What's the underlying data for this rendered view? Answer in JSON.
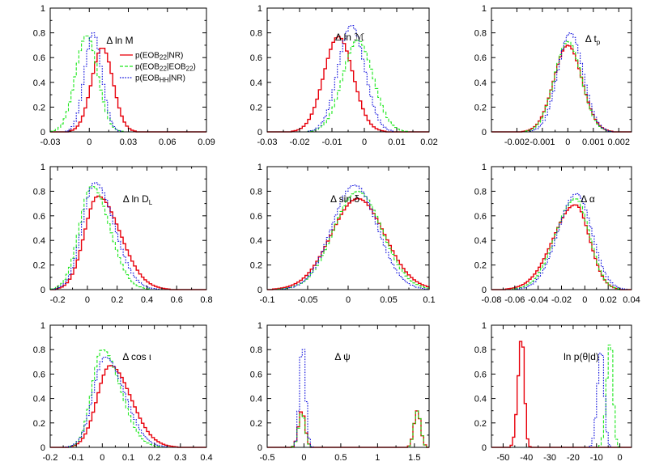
{
  "colors": {
    "red": "#e8000b",
    "green": "#1ee81e",
    "blue": "#0a0adc"
  },
  "legend": [
    {
      "series": "red",
      "base": "p(EOB",
      "sub": "22",
      "rest": "|NR)",
      "sub2": "",
      "tail": "",
      "style": "solid"
    },
    {
      "series": "green",
      "base": "p(EOB",
      "sub": "22",
      "rest": "|EOB",
      "sub2": "22",
      "tail": ")",
      "style": "dashed"
    },
    {
      "series": "blue",
      "base": "p(EOB",
      "sub": "HH",
      "rest": "|NR)",
      "sub2": "",
      "tail": "",
      "style": "dotted"
    }
  ],
  "chart_data": [
    {
      "type": "area",
      "label": "Δ ln M",
      "xlim": [
        -0.03,
        0.09
      ],
      "ylim": [
        0,
        1
      ],
      "xticks": [
        "-0.03",
        "0",
        "0.03",
        "0.06",
        "0.09"
      ],
      "yticks": [
        "0",
        "0.2",
        "0.4",
        "0.6",
        "0.8",
        "1"
      ],
      "series": [
        {
          "key": "red",
          "shape": "gauss",
          "mu": 0.01,
          "sigma": 0.0082,
          "peak": 0.68
        },
        {
          "key": "green",
          "shape": "gauss",
          "mu": -0.002,
          "sigma": 0.0085,
          "peak": 0.78
        },
        {
          "key": "blue",
          "shape": "gauss",
          "mu": 0.003,
          "sigma": 0.0066,
          "peak": 0.8
        }
      ]
    },
    {
      "type": "area",
      "label": "Δ ln ℳ",
      "xlim": [
        -0.03,
        0.02
      ],
      "ylim": [
        0,
        1
      ],
      "xticks": [
        "-0.03",
        "-0.02",
        "-0.01",
        "0",
        "0.01",
        "0.02"
      ],
      "yticks": [
        "0",
        "0.2",
        "0.4",
        "0.6",
        "0.8",
        "1"
      ],
      "series": [
        {
          "key": "red",
          "shape": "gauss",
          "mu": -0.008,
          "sigma": 0.0045,
          "peak": 0.77
        },
        {
          "key": "green",
          "shape": "gauss",
          "mu": -0.002,
          "sigma": 0.0047,
          "peak": 0.74
        },
        {
          "key": "blue",
          "shape": "gauss",
          "mu": -0.004,
          "sigma": 0.0041,
          "peak": 0.86
        }
      ]
    },
    {
      "type": "area",
      "label": "Δ t",
      "label_sub": "p",
      "xlim": [
        -0.003,
        0.0025
      ],
      "ylim": [
        0,
        1
      ],
      "xticks": [
        "-0.002",
        "-0.001",
        "0",
        "0.001",
        "0.002"
      ],
      "yticks": [
        "0",
        "0.2",
        "0.4",
        "0.6",
        "0.8",
        "1"
      ],
      "series": [
        {
          "key": "red",
          "shape": "gauss",
          "mu": 0.0,
          "sigma": 0.00055,
          "peak": 0.7
        },
        {
          "key": "green",
          "shape": "gauss",
          "mu": 0.0,
          "sigma": 0.00053,
          "peak": 0.73
        },
        {
          "key": "blue",
          "shape": "gauss",
          "mu": 0.0001,
          "sigma": 0.0005,
          "peak": 0.8
        }
      ]
    },
    {
      "type": "area",
      "label": "Δ ln D",
      "label_sub": "L",
      "xlim": [
        -0.25,
        0.8
      ],
      "ylim": [
        0,
        1
      ],
      "xticks": [
        "-0.2",
        "0",
        "0.2",
        "0.4",
        "0.6",
        "0.8"
      ],
      "yticks": [
        "0",
        "0.2",
        "0.4",
        "0.6",
        "0.8",
        "1"
      ],
      "series": [
        {
          "key": "red",
          "shape": "skew",
          "mu": 0.07,
          "sigma": 0.09,
          "sigma_r": 0.15,
          "peak": 0.76
        },
        {
          "key": "green",
          "shape": "skew",
          "mu": 0.03,
          "sigma": 0.085,
          "sigma_r": 0.12,
          "peak": 0.84
        },
        {
          "key": "blue",
          "shape": "skew",
          "mu": 0.05,
          "sigma": 0.085,
          "sigma_r": 0.13,
          "peak": 0.87
        }
      ]
    },
    {
      "type": "area",
      "label": "Δ sin δ",
      "xlim": [
        -0.1,
        0.1
      ],
      "ylim": [
        0,
        1
      ],
      "xticks": [
        "-0.1",
        "-0.05",
        "0",
        "0.05",
        "0.1"
      ],
      "yticks": [
        "0",
        "0.2",
        "0.4",
        "0.6",
        "0.8",
        "1"
      ],
      "series": [
        {
          "key": "red",
          "shape": "gauss",
          "mu": 0.012,
          "sigma": 0.033,
          "peak": 0.74
        },
        {
          "key": "green",
          "shape": "gauss",
          "mu": 0.012,
          "sigma": 0.03,
          "peak": 0.8
        },
        {
          "key": "blue",
          "shape": "gauss",
          "mu": 0.008,
          "sigma": 0.028,
          "peak": 0.85
        }
      ]
    },
    {
      "type": "area",
      "label": "Δ α",
      "xlim": [
        -0.08,
        0.04
      ],
      "ylim": [
        0,
        1
      ],
      "xticks": [
        "-0.08",
        "-0.06",
        "-0.04",
        "-0.02",
        "0",
        "0.02",
        "0.04"
      ],
      "yticks": [
        "0",
        "0.2",
        "0.4",
        "0.6",
        "0.8",
        "1"
      ],
      "series": [
        {
          "key": "red",
          "shape": "skew",
          "mu": -0.008,
          "sigma": 0.019,
          "sigma_r": 0.012,
          "peak": 0.69
        },
        {
          "key": "green",
          "shape": "skew",
          "mu": -0.008,
          "sigma": 0.017,
          "sigma_r": 0.012,
          "peak": 0.74
        },
        {
          "key": "blue",
          "shape": "skew",
          "mu": -0.007,
          "sigma": 0.016,
          "sigma_r": 0.013,
          "peak": 0.78
        }
      ]
    },
    {
      "type": "area",
      "label": "Δ cos ι",
      "xlim": [
        -0.2,
        0.4
      ],
      "ylim": [
        0,
        1
      ],
      "xticks": [
        "-0.2",
        "-0.1",
        "0",
        "0.1",
        "0.2",
        "0.3",
        "0.4"
      ],
      "yticks": [
        "0",
        "0.2",
        "0.4",
        "0.6",
        "0.8",
        "1"
      ],
      "series": [
        {
          "key": "red",
          "shape": "skew",
          "mu": 0.03,
          "sigma": 0.05,
          "sigma_r": 0.08,
          "peak": 0.67
        },
        {
          "key": "green",
          "shape": "skew",
          "mu": 0.0,
          "sigma": 0.04,
          "sigma_r": 0.07,
          "peak": 0.8
        },
        {
          "key": "blue",
          "shape": "skew",
          "mu": 0.01,
          "sigma": 0.045,
          "sigma_r": 0.075,
          "peak": 0.74
        }
      ]
    },
    {
      "type": "area",
      "label": "Δ ψ",
      "xlim": [
        -0.5,
        1.7
      ],
      "ylim": [
        0,
        1
      ],
      "xticks": [
        "-0.5",
        "0",
        "0.5",
        "1",
        "1.5"
      ],
      "yticks": [
        "0",
        "0.2",
        "0.4",
        "0.6",
        "0.8",
        "1"
      ],
      "series": [
        {
          "key": "red",
          "shape": "bimodal",
          "mu": -0.03,
          "sigma": 0.045,
          "peak": 0.3,
          "mu2": 1.54,
          "sigma2": 0.045,
          "peak2": 0.3
        },
        {
          "key": "green",
          "shape": "bimodal",
          "mu": -0.03,
          "sigma": 0.045,
          "peak": 0.28,
          "mu2": 1.54,
          "sigma2": 0.045,
          "peak2": 0.3
        },
        {
          "key": "blue",
          "shape": "gauss",
          "mu": -0.02,
          "sigma": 0.04,
          "peak": 0.86
        }
      ]
    },
    {
      "type": "area",
      "label": "ln p(θ|d)",
      "xlim": [
        -55,
        5
      ],
      "ylim": [
        0,
        1
      ],
      "xticks": [
        "-50",
        "-40",
        "-30",
        "-20",
        "-10",
        "0"
      ],
      "yticks": [
        "0",
        "0.2",
        "0.4",
        "0.6",
        "0.8",
        "1"
      ],
      "series": [
        {
          "key": "red",
          "shape": "skew",
          "mu": -42,
          "sigma": 1.6,
          "sigma_r": 1.1,
          "peak": 0.91
        },
        {
          "key": "green",
          "shape": "skew",
          "mu": -4,
          "sigma": 1.6,
          "sigma_r": 1.1,
          "peak": 0.88
        },
        {
          "key": "blue",
          "shape": "skew",
          "mu": -8,
          "sigma": 1.6,
          "sigma_r": 1.3,
          "peak": 0.81
        }
      ]
    }
  ]
}
